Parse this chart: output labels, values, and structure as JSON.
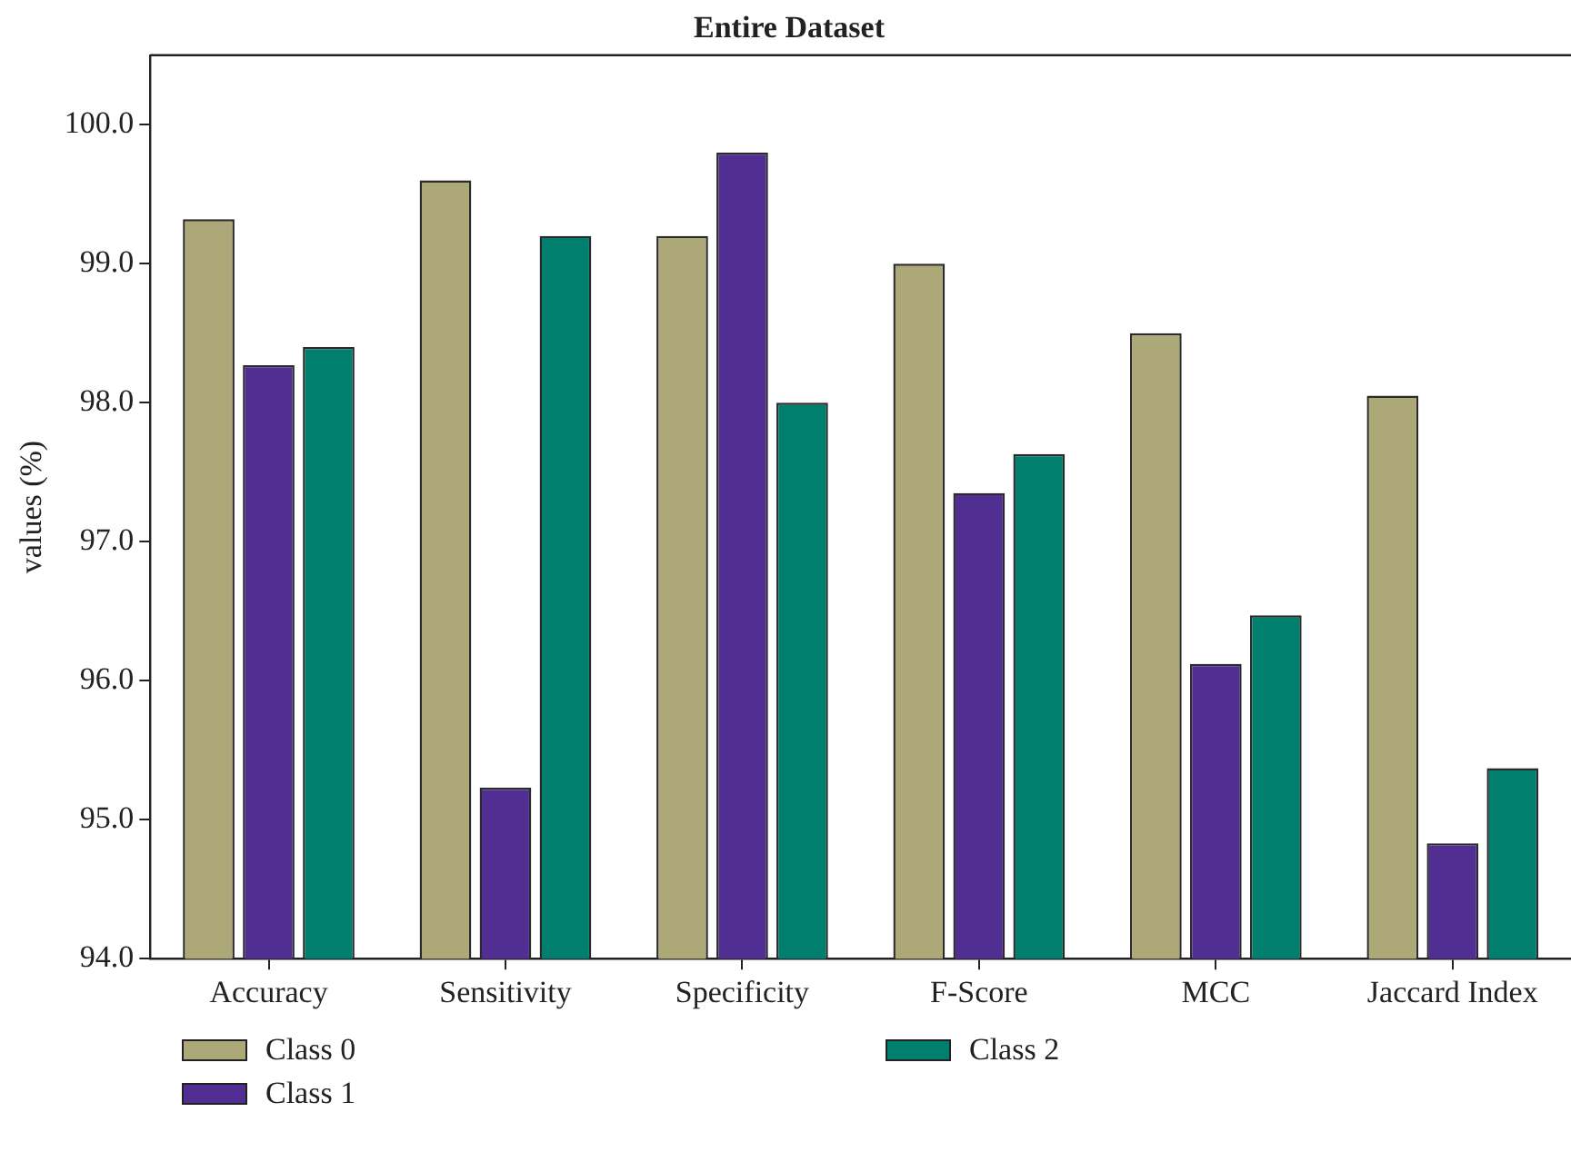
{
  "chart_data": {
    "type": "bar",
    "title": "Entire Dataset",
    "ylabel": "values (%)",
    "categories": [
      "Accuracy",
      "Sensitivity",
      "Specificity",
      "F-Score",
      "MCC",
      "Jaccard Index"
    ],
    "series": [
      {
        "name": "Class 0",
        "color": "#aca878",
        "values": [
          99.32,
          99.6,
          99.2,
          99.0,
          98.5,
          98.05
        ]
      },
      {
        "name": "Class 1",
        "color": "#512e91",
        "values": [
          98.27,
          95.23,
          99.8,
          97.35,
          96.12,
          94.83
        ]
      },
      {
        "name": "Class 2",
        "color": "#007f6f",
        "values": [
          98.4,
          99.2,
          98.0,
          97.63,
          96.47,
          95.37
        ]
      }
    ],
    "ylim": [
      94,
      100.5
    ],
    "yticks": [
      {
        "value": 94,
        "label": "94.0"
      },
      {
        "value": 95,
        "label": "95.0"
      },
      {
        "value": 96,
        "label": "96.0"
      },
      {
        "value": 97,
        "label": "97.0"
      },
      {
        "value": 98,
        "label": "98.0"
      },
      {
        "value": 99,
        "label": "99.0"
      },
      {
        "value": 100,
        "label": "100.0"
      }
    ],
    "grid": false,
    "legend": "bottom left"
  }
}
